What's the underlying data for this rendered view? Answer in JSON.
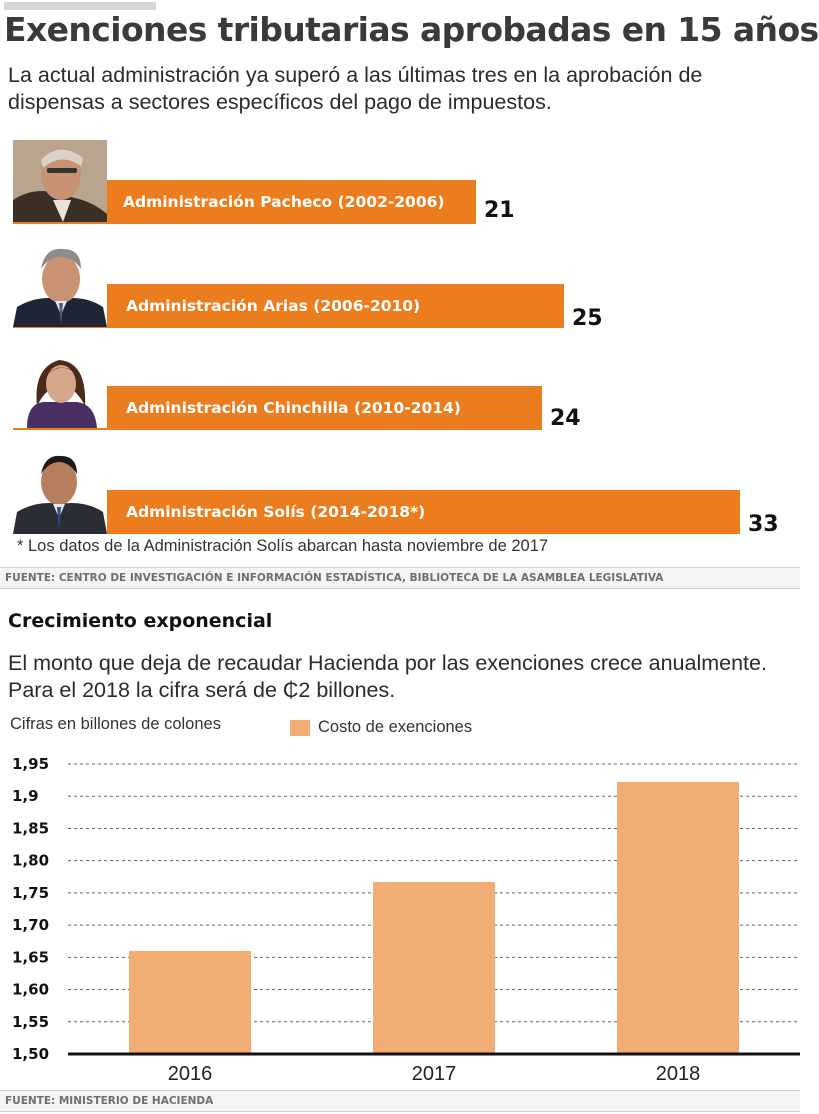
{
  "header": {
    "title": "Exenciones tributarias aprobadas en 15 años",
    "subtitle": " La actual administración ya superó a las últimas tres en la aprobación de dispensas a sectores específicos del pago de impuestos."
  },
  "administrations": [
    {
      "label": "Administración Pacheco (2002-2006)",
      "value": "21"
    },
    {
      "label": "Administración Arias (2006-2010)",
      "value": "25"
    },
    {
      "label": "Administración Chinchilla (2010-2014)",
      "value": "24"
    },
    {
      "label": "Administración Solís (2014-2018*)",
      "value": "33"
    }
  ],
  "note": "* Los datos de la Administración Solís abarcan hasta noviembre de 2017",
  "source1": "FUENTE: CENTRO DE INVESTIGACIÓN E INFORMACIÓN ESTADÍSTICA, BIBLIOTECA DE LA ASAMBLEA LEGISLATIVA",
  "section2": {
    "title": "Crecimiento exponencial",
    "subtitle": "El monto que deja de recaudar Hacienda por las exenciones crece anualmente. Para el 2018 la cifra será de ₵2 billones.",
    "unit_label": "Cifras en billones de colones"
  },
  "source2": "FUENTE: MINISTERIO DE HACIENDA",
  "colors": {
    "bar_orange": "#ec7d1f",
    "column_fill": "#f1ad73"
  },
  "chart_data": [
    {
      "type": "bar",
      "orientation": "horizontal",
      "categories": [
        "Administración Pacheco (2002-2006)",
        "Administración Arias (2006-2010)",
        "Administración Chinchilla (2010-2014)",
        "Administración Solís (2014-2018*)"
      ],
      "values": [
        21,
        25,
        24,
        33
      ],
      "title": "Exenciones tributarias aprobadas en 15 años"
    },
    {
      "type": "bar",
      "title": "Crecimiento exponencial",
      "categories": [
        "2016",
        "2017",
        "2018"
      ],
      "series": [
        {
          "name": "Costo de exenciones",
          "values": [
            1.66,
            1.767,
            1.922
          ]
        }
      ],
      "ylabel": "Cifras en billones de colones",
      "ylim": [
        1.5,
        1.95
      ],
      "yticks": [
        "1,50",
        "1,55",
        "1,60",
        "1,65",
        "1,70",
        "1,75",
        "1,80",
        "1,85",
        "1,9",
        "1,95"
      ],
      "grid": true,
      "legend": "top"
    }
  ]
}
